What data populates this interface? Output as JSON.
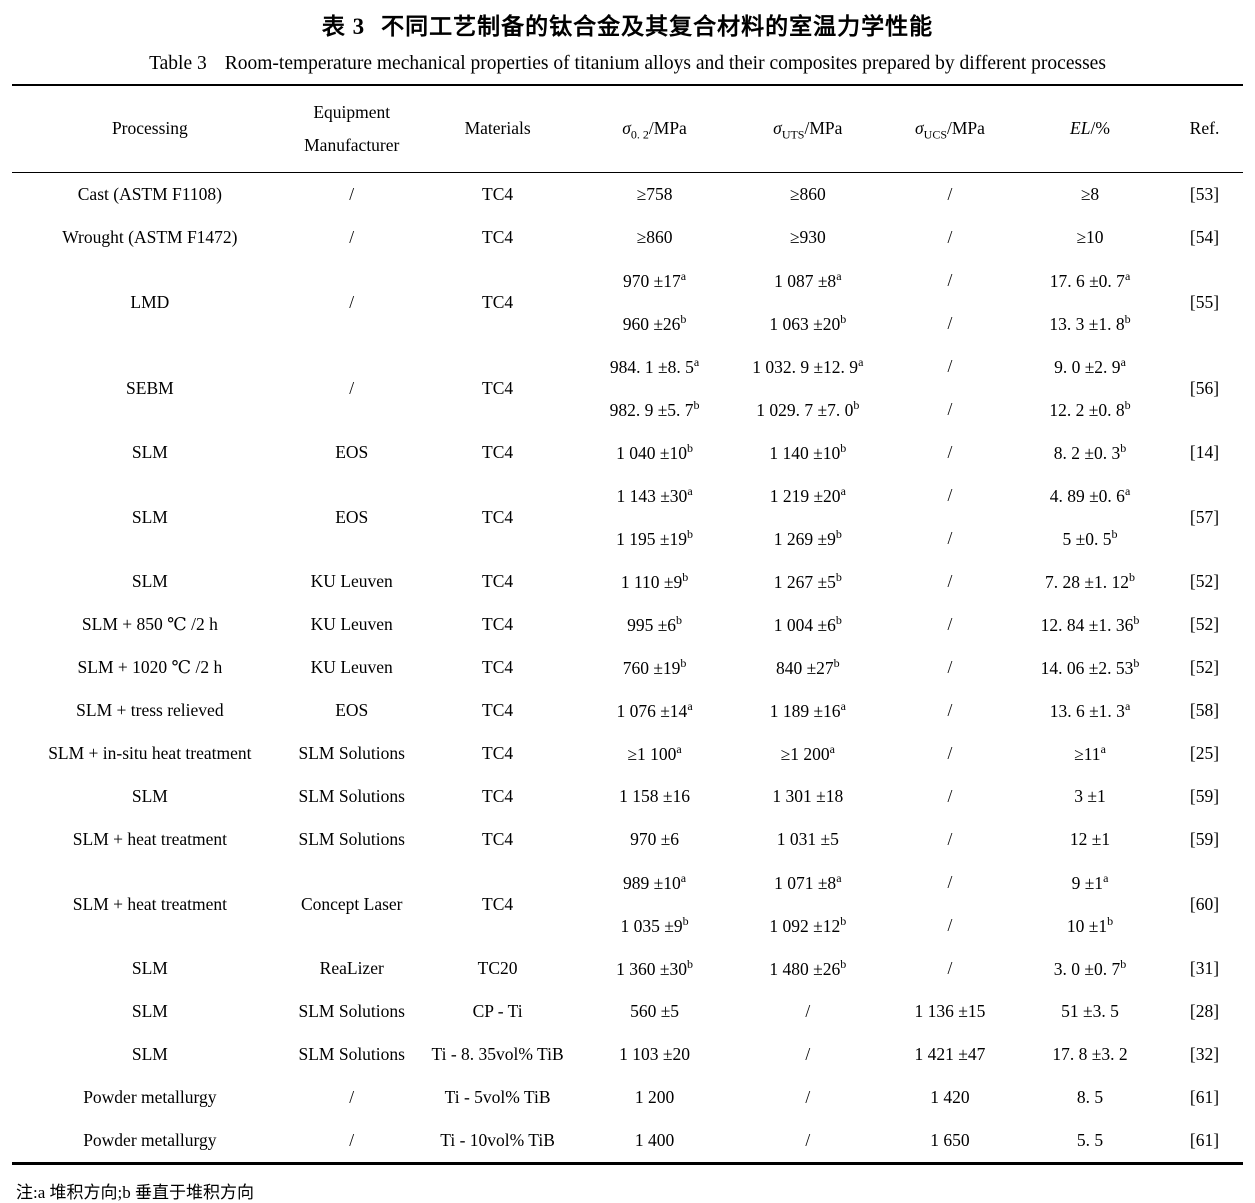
{
  "page": {
    "title_zh_label": "表 3",
    "title_zh_text": "不同工艺制备的钛合金及其复合材料的室温力学性能",
    "title_en_label": "Table 3",
    "title_en_text": "Room-temperature mechanical properties of titanium alloys and their composites prepared by different processes",
    "footnote": "注:a 堆积方向;b 垂直于堆积方向"
  },
  "columns": [
    {
      "label": "Processing"
    },
    {
      "line1": "Equipment",
      "line2": "Manufacturer"
    },
    {
      "label": "Materials"
    },
    {
      "sym": "σ",
      "sub": "0. 2",
      "unit": "/MPa"
    },
    {
      "sym": "σ",
      "sub": "UTS",
      "unit": "/MPa"
    },
    {
      "sym": "σ",
      "sub": "UCS",
      "unit": "/MPa"
    },
    {
      "italic": "EL",
      "rest": "/%"
    },
    {
      "label": "Ref."
    }
  ],
  "rows": [
    {
      "cells": [
        "Cast (ASTM F1108)",
        "/",
        "TC4",
        "≥758",
        "≥860",
        "/",
        "≥8",
        "[53]"
      ]
    },
    {
      "cells": [
        "Wrought (ASTM F1472)",
        "/",
        "TC4",
        "≥860",
        "≥930",
        "/",
        "≥10",
        "[54]"
      ]
    },
    {
      "cells": [
        "LMD",
        "/",
        "TC4",
        [
          "970 ±17^a",
          "960 ±26^b"
        ],
        [
          "1 087 ±8^a",
          "1 063 ±20^b"
        ],
        [
          "/",
          "/"
        ],
        [
          "17. 6 ±0. 7^a",
          "13. 3 ±1. 8^b"
        ],
        "[55]"
      ]
    },
    {
      "cells": [
        "SEBM",
        "/",
        "TC4",
        [
          "984. 1 ±8. 5^a",
          "982. 9 ±5. 7^b"
        ],
        [
          "1 032. 9 ±12. 9^a",
          "1 029. 7 ±7. 0^b"
        ],
        [
          "/",
          "/"
        ],
        [
          "9. 0 ±2. 9^a",
          "12. 2 ±0. 8^b"
        ],
        "[56]"
      ]
    },
    {
      "cells": [
        "SLM",
        "EOS",
        "TC4",
        "1 040 ±10^b",
        "1 140 ±10^b",
        "/",
        "8. 2 ±0. 3^b",
        "[14]"
      ]
    },
    {
      "cells": [
        "SLM",
        "EOS",
        "TC4",
        [
          "1 143 ±30^a",
          "1 195 ±19^b"
        ],
        [
          "1 219 ±20^a",
          "1 269 ±9^b"
        ],
        [
          "/",
          "/"
        ],
        [
          "4. 89 ±0. 6^a",
          "5 ±0. 5^b"
        ],
        "[57]"
      ]
    },
    {
      "cells": [
        "SLM",
        "KU Leuven",
        "TC4",
        "1 110 ±9^b",
        "1 267 ±5^b",
        "/",
        "7. 28 ±1. 12^b",
        "[52]"
      ]
    },
    {
      "cells": [
        "SLM + 850 ℃ /2 h",
        "KU Leuven",
        "TC4",
        "995 ±6^b",
        "1 004 ±6^b",
        "/",
        "12. 84 ±1. 36^b",
        "[52]"
      ]
    },
    {
      "cells": [
        "SLM + 1020 ℃ /2 h",
        "KU Leuven",
        "TC4",
        "760 ±19^b",
        "840 ±27^b",
        "/",
        "14. 06 ±2. 53^b",
        "[52]"
      ]
    },
    {
      "cells": [
        "SLM + tress relieved",
        "EOS",
        "TC4",
        "1 076 ±14^a",
        "1 189 ±16^a",
        "/",
        "13. 6 ±1. 3^a",
        "[58]"
      ]
    },
    {
      "cells": [
        "SLM + in-situ heat treatment",
        "SLM Solutions",
        "TC4",
        "≥1 100^a",
        "≥1 200^a",
        "/",
        "≥11^a",
        "[25]"
      ]
    },
    {
      "cells": [
        "SLM",
        "SLM Solutions",
        "TC4",
        "1 158 ±16",
        "1 301 ±18",
        "/",
        "3 ±1",
        "[59]"
      ]
    },
    {
      "cells": [
        "SLM +  heat treatment",
        "SLM Solutions",
        "TC4",
        "970 ±6",
        "1 031 ±5",
        "/",
        "12 ±1",
        "[59]"
      ]
    },
    {
      "cells": [
        "SLM + heat treatment",
        "Concept Laser",
        "TC4",
        [
          "989 ±10^a",
          "1 035 ±9^b"
        ],
        [
          "1 071 ±8^a",
          "1 092 ±12^b"
        ],
        [
          "/",
          "/"
        ],
        [
          "9 ±1^a",
          "10 ±1^b"
        ],
        "[60]"
      ]
    },
    {
      "cells": [
        "SLM",
        "ReaLizer",
        "TC20",
        "1 360 ±30^b",
        "1 480 ±26^b",
        "/",
        "3. 0 ±0. 7^b",
        "[31]"
      ]
    },
    {
      "cells": [
        "SLM",
        "SLM Solutions",
        "CP - Ti",
        "560 ±5",
        "/",
        "1 136 ±15",
        "51 ±3. 5",
        "[28]"
      ]
    },
    {
      "cells": [
        "SLM",
        "SLM Solutions",
        "Ti - 8. 35vol% TiB",
        "1 103 ±20",
        "/",
        "1 421 ±47",
        "17. 8 ±3. 2",
        "[32]"
      ]
    },
    {
      "cells": [
        "Powder metallurgy",
        "/",
        "Ti - 5vol% TiB",
        "1 200",
        "/",
        "1 420",
        "8. 5",
        "[61]"
      ]
    },
    {
      "cells": [
        "Powder metallurgy",
        "/",
        "Ti - 10vol% TiB",
        "1 400",
        "/",
        "1 650",
        "5. 5",
        "[61]"
      ]
    }
  ]
}
